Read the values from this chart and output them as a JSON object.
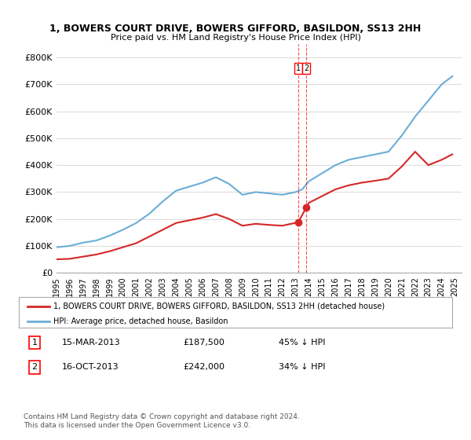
{
  "title": "1, BOWERS COURT DRIVE, BOWERS GIFFORD, BASILDON, SS13 2HH",
  "subtitle": "Price paid vs. HM Land Registry's House Price Index (HPI)",
  "red_label": "1, BOWERS COURT DRIVE, BOWERS GIFFORD, BASILDON, SS13 2HH (detached house)",
  "blue_label": "HPI: Average price, detached house, Basildon",
  "sale1_date": "15-MAR-2013",
  "sale1_price": "£187,500",
  "sale1_pct": "45% ↓ HPI",
  "sale1_year": 2013.2,
  "sale1_value": 187500,
  "sale2_date": "16-OCT-2013",
  "sale2_price": "£242,000",
  "sale2_pct": "34% ↓ HPI",
  "sale2_year": 2013.8,
  "sale2_value": 242000,
  "footer": "Contains HM Land Registry data © Crown copyright and database right 2024.\nThis data is licensed under the Open Government Licence v3.0.",
  "ylim": [
    0,
    850000
  ],
  "yticks": [
    0,
    100000,
    200000,
    300000,
    400000,
    500000,
    600000,
    700000,
    800000
  ],
  "ytick_labels": [
    "£0",
    "£100K",
    "£200K",
    "£300K",
    "£400K",
    "£500K",
    "£600K",
    "£700K",
    "£800K"
  ],
  "blue_color": "#6baed6",
  "red_color": "#d62728",
  "grid_color": "#dddddd",
  "bg_color": "#ffffff"
}
